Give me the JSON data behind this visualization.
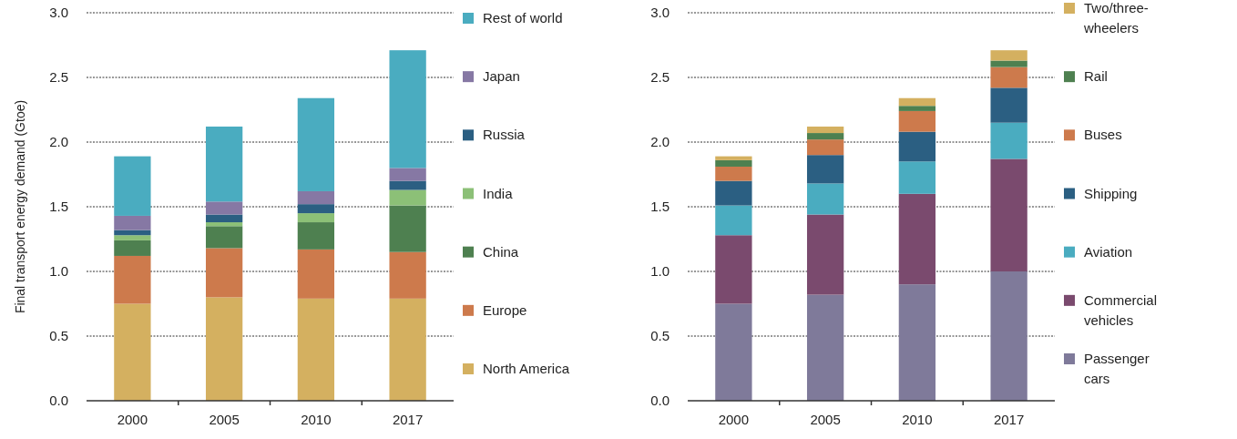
{
  "chart_data": [
    {
      "type": "bar",
      "stacked": true,
      "ylabel": "Final transport energy demand (Gtoe)",
      "categories": [
        "2000",
        "2005",
        "2010",
        "2017"
      ],
      "ylim": [
        0,
        3
      ],
      "yticks": [
        {
          "value": 0,
          "label": "0.0"
        },
        {
          "value": 0.5,
          "label": "0.5"
        },
        {
          "value": 1,
          "label": "1.0"
        },
        {
          "value": 1.5,
          "label": "1.5"
        },
        {
          "value": 2,
          "label": "2.0"
        },
        {
          "value": 2.5,
          "label": "2.5"
        },
        {
          "value": 3,
          "label": "3.0"
        }
      ],
      "grid": "y",
      "legend": "right",
      "series": [
        {
          "name": "North America",
          "color": "#d4b060",
          "values": [
            0.75,
            0.8,
            0.79,
            0.79
          ]
        },
        {
          "name": "Europe",
          "color": "#cd7a4c",
          "values": [
            0.37,
            0.38,
            0.38,
            0.36
          ]
        },
        {
          "name": "China",
          "color": "#4e8050",
          "values": [
            0.12,
            0.17,
            0.21,
            0.36
          ]
        },
        {
          "name": "India",
          "color": "#8cc077",
          "values": [
            0.04,
            0.03,
            0.07,
            0.12
          ]
        },
        {
          "name": "Russia",
          "color": "#2b5f82",
          "values": [
            0.04,
            0.06,
            0.07,
            0.07
          ]
        },
        {
          "name": "Japan",
          "color": "#8678a4",
          "values": [
            0.11,
            0.1,
            0.1,
            0.1
          ]
        },
        {
          "name": "Rest of world",
          "color": "#4aacc0",
          "values": [
            0.46,
            0.58,
            0.72,
            0.91
          ]
        }
      ]
    },
    {
      "type": "bar",
      "stacked": true,
      "categories": [
        "2000",
        "2005",
        "2010",
        "2017"
      ],
      "ylim": [
        0,
        3
      ],
      "yticks": [
        {
          "value": 0,
          "label": "0.0"
        },
        {
          "value": 0.5,
          "label": "0.5"
        },
        {
          "value": 1,
          "label": "1.0"
        },
        {
          "value": 1.5,
          "label": "1.5"
        },
        {
          "value": 2,
          "label": "2.0"
        },
        {
          "value": 2.5,
          "label": "2.5"
        },
        {
          "value": 3,
          "label": "3.0"
        }
      ],
      "grid": "y",
      "legend": "right",
      "series": [
        {
          "name": "Passenger cars",
          "color": "#7f7a9a",
          "values": [
            0.75,
            0.82,
            0.9,
            1.0
          ]
        },
        {
          "name": "Commercial vehicles",
          "color": "#7a4a6e",
          "values": [
            0.53,
            0.62,
            0.7,
            0.87
          ]
        },
        {
          "name": "Aviation",
          "color": "#4aacc0",
          "values": [
            0.23,
            0.24,
            0.25,
            0.28
          ]
        },
        {
          "name": "Shipping",
          "color": "#2b5f82",
          "values": [
            0.19,
            0.22,
            0.23,
            0.27
          ]
        },
        {
          "name": "Buses",
          "color": "#cd7a4c",
          "values": [
            0.11,
            0.12,
            0.16,
            0.16
          ]
        },
        {
          "name": "Rail",
          "color": "#4e8050",
          "values": [
            0.05,
            0.05,
            0.04,
            0.05
          ]
        },
        {
          "name": "Two/three-wheelers",
          "color": "#d4b060",
          "values": [
            0.03,
            0.05,
            0.06,
            0.08
          ]
        }
      ]
    }
  ]
}
